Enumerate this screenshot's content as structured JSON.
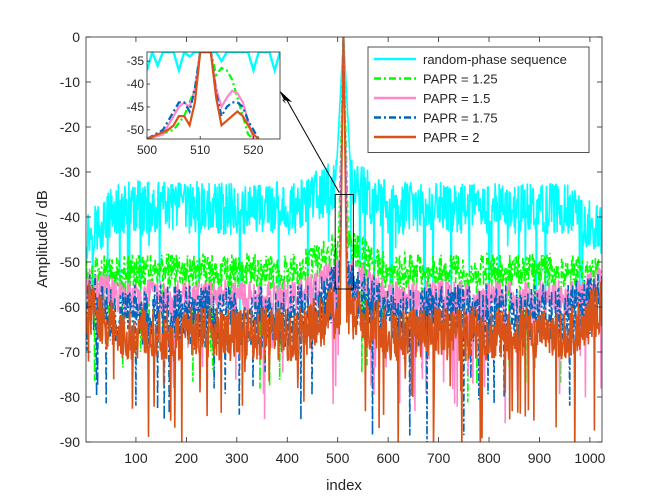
{
  "chart_data": {
    "type": "line",
    "title": "",
    "xlabel": "index",
    "ylabel": "Amplitude / dB",
    "xlim": [
      1,
      1024
    ],
    "ylim": [
      -90,
      0
    ],
    "xticks": [
      100,
      200,
      300,
      400,
      500,
      600,
      700,
      800,
      900,
      1000
    ],
    "yticks": [
      -90,
      -80,
      -70,
      -60,
      -50,
      -40,
      -30,
      -20,
      -10,
      0
    ],
    "grid": false,
    "legend_position": "top-right",
    "series": [
      {
        "name": "random-phase sequence",
        "color": "#00ffff",
        "style": "solid",
        "floor": -38,
        "spread": 6,
        "edge": -44,
        "peak_width": 14
      },
      {
        "name": "PAPR = 1.25",
        "color": "#00ff00",
        "style": "dashdot",
        "floor": -52,
        "spread": 4,
        "edge": -53,
        "peak_width": 9
      },
      {
        "name": "PAPR = 1.5",
        "color": "#ff88cc",
        "style": "solid",
        "floor": -58,
        "spread": 4,
        "edge": -55,
        "peak_width": 8
      },
      {
        "name": "PAPR = 1.75",
        "color": "#0066bb",
        "style": "dashdot",
        "floor": -62,
        "spread": 7,
        "edge": -58,
        "peak_width": 7
      },
      {
        "name": "PAPR = 2",
        "color": "#d95319",
        "style": "solid",
        "floor": -66,
        "spread": 6,
        "edge": -60,
        "peak_width": 6
      }
    ],
    "inset": {
      "xlim": [
        500,
        525
      ],
      "ylim": [
        -52,
        -33
      ],
      "xticks": [
        500,
        510,
        520
      ],
      "yticks": [
        -35,
        -40,
        -45,
        -50
      ],
      "source_region": {
        "x": [
          495,
          531
        ],
        "y": [
          -56,
          -35
        ]
      },
      "series": [
        {
          "name": "random-phase sequence",
          "points": [
            [
              500,
              -37
            ],
            [
              501,
              -33
            ],
            [
              502,
              -36
            ],
            [
              503,
              -33
            ],
            [
              505,
              -33
            ],
            [
              506,
              -37
            ],
            [
              507,
              -33
            ],
            [
              508,
              -34
            ],
            [
              509,
              -33
            ],
            [
              513,
              -33
            ],
            [
              514,
              -35
            ],
            [
              515,
              -33
            ],
            [
              519,
              -33
            ],
            [
              520,
              -37
            ],
            [
              521,
              -33
            ],
            [
              523,
              -33
            ],
            [
              524,
              -37
            ],
            [
              525,
              -33
            ]
          ]
        },
        {
          "name": "PAPR = 1.25",
          "points": [
            [
              500,
              -52
            ],
            [
              505,
              -50
            ],
            [
              507,
              -47
            ],
            [
              509,
              -41
            ],
            [
              510,
              -33
            ],
            [
              512,
              -33
            ],
            [
              513,
              -38
            ],
            [
              514,
              -36.5
            ],
            [
              515,
              -37
            ],
            [
              516,
              -39
            ],
            [
              517,
              -43
            ],
            [
              518,
              -47
            ],
            [
              519,
              -51
            ],
            [
              520,
              -52
            ]
          ]
        },
        {
          "name": "PAPR = 1.5",
          "points": [
            [
              500,
              -52
            ],
            [
              503,
              -51
            ],
            [
              505,
              -47
            ],
            [
              506,
              -45
            ],
            [
              507,
              -44
            ],
            [
              508,
              -45
            ],
            [
              509,
              -41
            ],
            [
              510,
              -33
            ],
            [
              512,
              -33
            ],
            [
              513,
              -41
            ],
            [
              514,
              -45
            ],
            [
              515,
              -43
            ],
            [
              516,
              -41.5
            ],
            [
              517,
              -42
            ],
            [
              518,
              -44
            ],
            [
              519,
              -48
            ],
            [
              520,
              -52
            ]
          ]
        },
        {
          "name": "PAPR = 1.75",
          "points": [
            [
              500,
              -52
            ],
            [
              503,
              -50
            ],
            [
              504,
              -48
            ],
            [
              505,
              -46
            ],
            [
              506,
              -44
            ],
            [
              507,
              -44
            ],
            [
              508,
              -46
            ],
            [
              509,
              -41
            ],
            [
              510,
              -33
            ],
            [
              512,
              -33
            ],
            [
              513,
              -42
            ],
            [
              514,
              -47
            ],
            [
              515,
              -45
            ],
            [
              516,
              -44
            ],
            [
              517,
              -44
            ],
            [
              518,
              -45
            ],
            [
              519,
              -48
            ],
            [
              520,
              -50
            ],
            [
              521,
              -52
            ]
          ]
        },
        {
          "name": "PAPR = 2",
          "points": [
            [
              500,
              -52
            ],
            [
              504,
              -50
            ],
            [
              505,
              -49
            ],
            [
              506,
              -47
            ],
            [
              507,
              -47
            ],
            [
              508,
              -49
            ],
            [
              509,
              -44
            ],
            [
              510,
              -33
            ],
            [
              512,
              -33
            ],
            [
              513,
              -43
            ],
            [
              514,
              -49
            ],
            [
              515,
              -48
            ],
            [
              516,
              -47
            ],
            [
              517,
              -46
            ],
            [
              518,
              -47
            ],
            [
              519,
              -49
            ],
            [
              520,
              -51
            ],
            [
              521,
              -52
            ]
          ]
        }
      ]
    }
  }
}
